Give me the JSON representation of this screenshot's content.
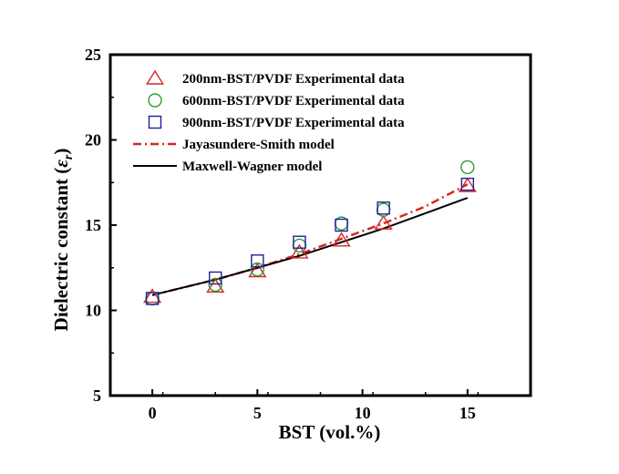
{
  "chart_data": {
    "type": "scatter",
    "title": "",
    "xlabel": "BST (vol.%)",
    "ylabel": {
      "prefix": "Dielectric constant (",
      "symbol": "ε",
      "subscript": "r",
      "suffix": ")"
    },
    "xlim": [
      -2,
      18
    ],
    "ylim": [
      5,
      25
    ],
    "xticks": [
      0,
      5,
      10,
      15
    ],
    "yticks": [
      5,
      10,
      15,
      20,
      25
    ],
    "grid": false,
    "legend_position": "top-left",
    "series": [
      {
        "name": "200nm-BST/PVDF Experimental data",
        "marker": "triangle",
        "color": "#d62728",
        "x": [
          0,
          3,
          5,
          7,
          9,
          11,
          15
        ],
        "y": [
          10.8,
          11.4,
          12.3,
          13.4,
          14.1,
          15.1,
          17.3
        ]
      },
      {
        "name": "600nm-BST/PVDF Experimental data",
        "marker": "circle",
        "color": "#2ca02c",
        "x": [
          0,
          3,
          5,
          7,
          9,
          11,
          15
        ],
        "y": [
          10.7,
          11.5,
          12.4,
          13.8,
          15.1,
          15.9,
          18.4
        ]
      },
      {
        "name": "900nm-BST/PVDF Experimental data",
        "marker": "square",
        "color": "#1f1f9e",
        "x": [
          0,
          3,
          5,
          7,
          9,
          11,
          15
        ],
        "y": [
          10.7,
          11.9,
          12.9,
          14.0,
          15.0,
          16.0,
          17.4
        ]
      },
      {
        "name": "Jayasundere-Smith model",
        "marker": "line",
        "dash": "dashdot",
        "color": "#d62728",
        "x": [
          0,
          3,
          5,
          7,
          9,
          11,
          13,
          15
        ],
        "y": [
          10.9,
          11.8,
          12.5,
          13.3,
          14.2,
          15.1,
          16.1,
          17.4
        ]
      },
      {
        "name": "Maxwell-Wagner model",
        "marker": "line",
        "dash": "solid",
        "color": "#000000",
        "x": [
          0,
          3,
          5,
          7,
          9,
          11,
          13,
          15
        ],
        "y": [
          10.9,
          11.8,
          12.5,
          13.2,
          14.0,
          14.8,
          15.7,
          16.6
        ]
      }
    ]
  }
}
